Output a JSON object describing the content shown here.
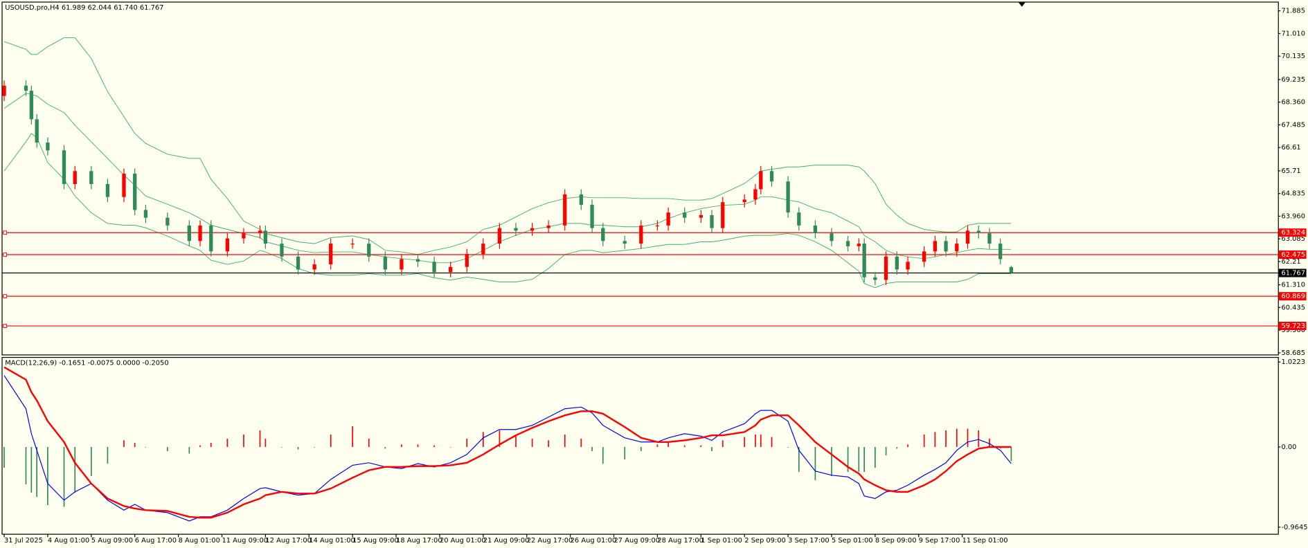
{
  "chart_data": [
    {
      "type": "candlestick",
      "title": "USOUSD.pro,H4  61.989 62.044 61.740 61.767",
      "x": [
        0,
        4,
        5,
        6,
        8,
        11,
        13,
        16,
        19,
        22,
        24,
        26,
        30,
        34,
        36,
        38,
        41,
        44,
        47,
        48,
        51,
        54,
        57,
        60,
        64,
        67,
        70,
        73,
        76,
        79,
        82,
        85,
        88,
        91,
        94,
        97,
        100,
        103,
        106,
        108,
        110,
        114,
        117,
        120,
        122,
        125,
        128,
        130,
        132,
        136,
        138,
        139,
        141,
        144,
        146,
        149,
        152,
        155,
        157,
        158,
        160,
        162,
        164,
        166,
        169,
        171,
        173,
        175,
        177,
        179,
        181,
        183,
        185
      ],
      "open": [
        68.6,
        69.0,
        68.8,
        67.7,
        66.8,
        66.5,
        65.2,
        65.7,
        65.2,
        64.7,
        65.6,
        64.2,
        63.9,
        63.6,
        63.0,
        63.6,
        62.6,
        63.1,
        63.3,
        63.4,
        62.9,
        62.4,
        61.9,
        62.1,
        62.9,
        62.9,
        62.4,
        61.9,
        62.3,
        62.2,
        61.8,
        62.0,
        62.5,
        62.9,
        63.5,
        63.4,
        63.5,
        63.6,
        64.8,
        64.4,
        63.5,
        63.0,
        62.9,
        63.6,
        63.6,
        64.1,
        63.9,
        64.0,
        63.5,
        64.5,
        64.6,
        65.0,
        65.7,
        65.3,
        64.1,
        63.6,
        63.3,
        63.0,
        62.8,
        62.9,
        61.6,
        61.5,
        62.4,
        61.9,
        62.2,
        62.6,
        63.0,
        62.6,
        62.9,
        63.4,
        63.3,
        62.9,
        61.989
      ],
      "high": [
        69.2,
        69.2,
        69.0,
        67.9,
        67.0,
        66.7,
        65.9,
        65.9,
        65.4,
        65.8,
        65.8,
        64.4,
        64.1,
        63.8,
        63.8,
        63.8,
        63.3,
        63.5,
        63.6,
        63.6,
        63.1,
        62.6,
        62.3,
        63.1,
        63.1,
        63.1,
        62.6,
        62.5,
        62.5,
        62.4,
        62.2,
        62.7,
        63.1,
        63.7,
        63.7,
        63.7,
        63.8,
        65.0,
        65.0,
        64.6,
        63.7,
        63.2,
        63.8,
        63.8,
        64.3,
        64.3,
        64.2,
        64.2,
        64.7,
        64.8,
        65.2,
        65.9,
        65.9,
        65.5,
        64.3,
        63.8,
        63.5,
        63.2,
        63.1,
        63.1,
        61.8,
        62.6,
        62.6,
        62.4,
        62.8,
        63.2,
        63.2,
        63.1,
        63.6,
        63.6,
        63.5,
        63.1,
        62.044
      ],
      "low": [
        68.4,
        68.6,
        67.5,
        66.6,
        66.3,
        65.0,
        65.0,
        65.0,
        64.5,
        64.5,
        64.0,
        63.7,
        63.4,
        62.8,
        62.8,
        62.4,
        62.4,
        62.9,
        63.1,
        62.7,
        62.2,
        61.7,
        61.7,
        61.9,
        62.7,
        62.2,
        61.7,
        61.7,
        62.0,
        61.6,
        61.6,
        61.8,
        62.3,
        62.7,
        63.2,
        63.2,
        63.3,
        63.4,
        64.2,
        63.3,
        62.8,
        62.7,
        62.7,
        63.4,
        63.4,
        63.7,
        63.7,
        63.3,
        63.3,
        64.3,
        64.4,
        64.8,
        65.1,
        63.9,
        63.4,
        63.1,
        62.8,
        62.6,
        62.6,
        61.4,
        61.3,
        61.3,
        61.7,
        61.7,
        62.0,
        62.4,
        62.4,
        62.4,
        62.7,
        63.1,
        62.7,
        62.1,
        61.74
      ],
      "close": [
        69.0,
        68.8,
        67.7,
        66.8,
        66.5,
        65.2,
        65.7,
        65.2,
        64.7,
        65.6,
        64.2,
        63.9,
        63.6,
        63.0,
        63.6,
        62.6,
        63.1,
        63.3,
        63.4,
        62.9,
        62.4,
        61.9,
        62.1,
        62.9,
        62.9,
        62.4,
        61.9,
        62.3,
        62.2,
        61.8,
        62.0,
        62.5,
        62.9,
        63.5,
        63.4,
        63.5,
        63.6,
        64.8,
        64.4,
        63.5,
        63.0,
        62.9,
        63.6,
        63.6,
        64.1,
        63.9,
        64.0,
        63.5,
        64.5,
        64.6,
        65.0,
        65.7,
        65.3,
        64.1,
        63.6,
        63.3,
        63.0,
        62.8,
        62.9,
        61.6,
        61.5,
        62.4,
        61.9,
        62.2,
        62.6,
        63.0,
        62.6,
        62.9,
        63.4,
        63.3,
        62.9,
        62.3,
        61.767
      ],
      "up_color": "#ff0000",
      "down_color": "#2e8b57",
      "bands": [
        {
          "color": "#3cb371",
          "values": [
            70.7,
            70.4,
            70.2,
            70.2,
            70.5,
            70.85,
            70.85,
            70.05,
            68.76,
            67.8,
            67.15,
            66.77,
            66.35,
            66.19,
            66.19,
            65.38,
            64.64,
            63.77,
            63.45,
            63.29,
            63.13,
            62.97,
            62.9,
            63.13,
            63.2,
            63.06,
            62.64,
            62.58,
            62.48,
            62.64,
            62.77,
            62.97,
            63.45,
            63.61,
            63.93,
            64.25,
            64.48,
            64.64,
            64.71,
            64.67,
            64.67,
            64.67,
            64.64,
            64.64,
            64.64,
            64.58,
            64.58,
            64.64,
            64.83,
            65.22,
            65.54,
            65.7,
            65.77,
            65.86,
            65.86,
            65.93,
            65.93,
            65.93,
            65.86,
            65.7,
            65.22,
            64.42,
            64.0,
            63.68,
            63.45,
            63.39,
            63.35,
            63.35,
            63.61,
            63.68,
            63.68,
            63.68,
            63.68
          ]
        },
        {
          "color": "#3cb371",
          "values": [
            68.12,
            68.7,
            68.66,
            68.6,
            68.28,
            67.96,
            67.47,
            66.83,
            66.19,
            65.54,
            65.16,
            64.74,
            64.42,
            64.09,
            63.87,
            63.61,
            63.45,
            63.29,
            63.13,
            62.97,
            62.81,
            62.64,
            62.55,
            62.58,
            62.58,
            62.48,
            62.39,
            62.32,
            62.26,
            62.16,
            62.16,
            62.32,
            62.64,
            62.97,
            63.22,
            63.45,
            63.55,
            63.68,
            63.68,
            63.61,
            63.61,
            63.55,
            63.55,
            63.68,
            63.87,
            64.09,
            64.25,
            64.32,
            64.38,
            64.42,
            64.58,
            64.71,
            64.71,
            64.58,
            64.51,
            64.25,
            64.09,
            63.77,
            63.55,
            63.22,
            62.97,
            62.64,
            62.48,
            62.39,
            62.32,
            62.39,
            62.48,
            62.55,
            62.64,
            62.71,
            62.68,
            62.68,
            62.68
          ]
        },
        {
          "color": "#3cb371",
          "values": [
            65.7,
            66.83,
            67.15,
            66.99,
            66.03,
            65.38,
            64.74,
            64.09,
            63.68,
            63.61,
            63.61,
            63.51,
            63.19,
            62.81,
            62.64,
            62.26,
            62.1,
            62.23,
            62.64,
            62.58,
            62.32,
            61.94,
            61.74,
            61.68,
            61.68,
            61.74,
            61.68,
            61.68,
            61.74,
            61.58,
            61.49,
            61.61,
            61.52,
            61.42,
            61.42,
            61.52,
            61.94,
            62.48,
            62.64,
            62.64,
            62.55,
            62.64,
            62.71,
            62.81,
            62.87,
            62.87,
            62.97,
            62.97,
            63.03,
            63.19,
            63.22,
            63.22,
            63.22,
            63.29,
            63.22,
            62.97,
            62.64,
            62.16,
            61.84,
            61.36,
            61.2,
            61.36,
            61.42,
            61.42,
            61.42,
            61.42,
            61.42,
            61.42,
            61.52,
            61.74,
            61.74,
            61.74,
            61.74
          ]
        }
      ],
      "hlines": [
        {
          "value": 63.324,
          "color": "#ff0000"
        },
        {
          "value": 62.475,
          "color": "#ff0000"
        },
        {
          "value": 60.869,
          "color": "#ff0000"
        },
        {
          "value": 59.723,
          "color": "#ff0000"
        }
      ],
      "price_line_color": "#000000",
      "xlim": [
        0,
        234
      ],
      "ylim": [
        58.685,
        71.885
      ],
      "yticks": [
        71.885,
        {
          "value": 71.01,
          "label": "71.010"
        },
        70.135,
        69.235,
        {
          "value": 68.36,
          "label": "68.360"
        },
        67.485,
        66.61,
        65.71,
        64.835,
        {
          "value": 63.96,
          "label": "63.960"
        },
        63.085,
        62.21,
        {
          "value": 61.31,
          "label": "61.310"
        },
        60.435,
        {
          "value": 59.56,
          "label": "59.560"
        },
        58.685
      ]
    },
    {
      "type": "macd",
      "title": "MACD(12,26,9) -0.1651 -0.0075 0.0000 -0.2050",
      "histogram": {
        "up_color": "#ff0000",
        "down_color": "#2e8b57",
        "values": [
          -0.25,
          -0.45,
          -0.55,
          -0.6,
          -0.7,
          -0.72,
          -0.55,
          -0.35,
          -0.2,
          0.08,
          0.05,
          0,
          -0.05,
          -0.08,
          0.02,
          0.05,
          0.1,
          0.15,
          0.2,
          0.1,
          0,
          -0.03,
          0,
          0.15,
          0.25,
          0.1,
          -0.02,
          0.03,
          0.03,
          0.02,
          0,
          0.1,
          0.18,
          0.2,
          0.15,
          0.1,
          0.08,
          0.15,
          0.1,
          -0.05,
          -0.2,
          -0.15,
          -0.05,
          0.03,
          0.05,
          0.02,
          0.02,
          -0.05,
          0.08,
          0.12,
          0.15,
          0.15,
          0.12,
          0,
          -0.3,
          -0.4,
          -0.35,
          -0.3,
          -0.3,
          -0.3,
          -0.25,
          -0.1,
          -0.02,
          0.03,
          0.15,
          0.18,
          0.2,
          0.22,
          0.22,
          0.2,
          0.1,
          -0.02,
          -0.17
        ]
      },
      "lines": [
        {
          "color": "#0000ff",
          "width": 1,
          "values": [
            0.86,
            0.46,
            0.16,
            -0.04,
            -0.44,
            -0.64,
            -0.54,
            -0.44,
            -0.64,
            -0.76,
            -0.69,
            -0.76,
            -0.79,
            -0.89,
            -0.84,
            -0.84,
            -0.76,
            -0.62,
            -0.5,
            -0.49,
            -0.54,
            -0.58,
            -0.56,
            -0.39,
            -0.22,
            -0.19,
            -0.24,
            -0.26,
            -0.2,
            -0.24,
            -0.19,
            -0.09,
            0.11,
            0.21,
            0.21,
            0.26,
            0.36,
            0.46,
            0.48,
            0.41,
            0.26,
            0.11,
            0.06,
            0.06,
            0.11,
            0.16,
            0.13,
            0.08,
            0.18,
            0.28,
            0.4,
            0.44,
            0.44,
            0.31,
            -0.04,
            -0.29,
            -0.34,
            -0.36,
            -0.44,
            -0.59,
            -0.62,
            -0.54,
            -0.52,
            -0.46,
            -0.34,
            -0.27,
            -0.19,
            -0.04,
            0.06,
            0.09,
            0.04,
            -0.04,
            -0.2
          ]
        },
        {
          "color": "#ff0000",
          "width": 2,
          "values": [
            0.96,
            0.81,
            0.66,
            0.56,
            0.31,
            0.06,
            -0.19,
            -0.44,
            -0.62,
            -0.71,
            -0.74,
            -0.76,
            -0.77,
            -0.84,
            -0.85,
            -0.85,
            -0.79,
            -0.69,
            -0.62,
            -0.58,
            -0.54,
            -0.56,
            -0.56,
            -0.5,
            -0.37,
            -0.28,
            -0.24,
            -0.24,
            -0.23,
            -0.23,
            -0.22,
            -0.19,
            -0.09,
            0.03,
            0.14,
            0.23,
            0.31,
            0.38,
            0.43,
            0.43,
            0.4,
            0.24,
            0.11,
            0.06,
            0.06,
            0.08,
            0.11,
            0.14,
            0.14,
            0.18,
            0.26,
            0.33,
            0.38,
            0.38,
            0.26,
            0.06,
            -0.09,
            -0.24,
            -0.32,
            -0.39,
            -0.46,
            -0.52,
            -0.54,
            -0.54,
            -0.46,
            -0.39,
            -0.29,
            -0.17,
            -0.09,
            -0.02,
            0,
            0,
            0
          ]
        }
      ],
      "xlim": [
        0,
        234
      ],
      "ylim": [
        -0.9645,
        1.0223
      ],
      "yticks": [
        1.0223,
        {
          "value": 0,
          "label": "0.00"
        },
        -0.9645
      ],
      "xticks": [
        {
          "value": 0,
          "label": "31 Jul 2025"
        },
        {
          "value": 8,
          "label": "4 Aug 01:00"
        },
        {
          "value": 16,
          "label": "5 Aug 09:00"
        },
        {
          "value": 24,
          "label": "6 Aug 17:00"
        },
        {
          "value": 32,
          "label": "8 Aug 01:00"
        },
        {
          "value": 40,
          "label": "11 Aug 09:00"
        },
        {
          "value": 48,
          "label": "12 Aug 17:00"
        },
        {
          "value": 56,
          "label": "14 Aug 01:00"
        },
        {
          "value": 64,
          "label": "15 Aug 09:00"
        },
        {
          "value": 72,
          "label": "18 Aug 17:00"
        },
        {
          "value": 80,
          "label": "20 Aug 01:00"
        },
        {
          "value": 88,
          "label": "21 Aug 09:00"
        },
        {
          "value": 96,
          "label": "22 Aug 17:00"
        },
        {
          "value": 104,
          "label": "26 Aug 01:00"
        },
        {
          "value": 112,
          "label": "27 Aug 09:00"
        },
        {
          "value": 120,
          "label": "28 Aug 17:00"
        },
        {
          "value": 128,
          "label": "1 Sep 01:00"
        },
        {
          "value": 136,
          "label": "2 Sep 09:00"
        },
        {
          "value": 144,
          "label": "3 Sep 17:00"
        },
        {
          "value": 152,
          "label": "5 Sep 01:00"
        },
        {
          "value": 160,
          "label": "8 Sep 09:00"
        },
        {
          "value": 168,
          "label": "9 Sep 17:00"
        },
        {
          "value": 176,
          "label": "11 Sep 01:00"
        }
      ]
    }
  ]
}
